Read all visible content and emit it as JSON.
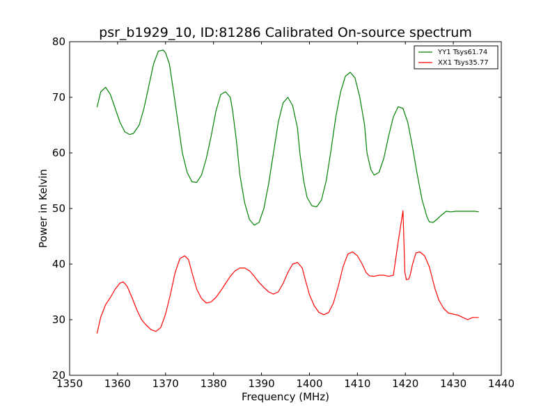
{
  "chart_data": {
    "type": "line",
    "title": "psr_b1929_10, ID:81286 Calibrated On-source spectrum",
    "xlabel": "Frequency (MHz)",
    "ylabel": "Power in Kelvin",
    "xlim": [
      1350,
      1440
    ],
    "ylim": [
      20,
      80
    ],
    "xticks": [
      "1350",
      "1360",
      "1370",
      "1380",
      "1390",
      "1400",
      "1410",
      "1420",
      "1430",
      "1440"
    ],
    "yticks": [
      "20",
      "30",
      "40",
      "50",
      "60",
      "70",
      "80"
    ],
    "grid": false,
    "legend_position": "top-right",
    "series": [
      {
        "name": "YY1 Tsys61.74",
        "color": "#008000",
        "x": [
          1355.7,
          1356.5,
          1357.5,
          1358.5,
          1359.5,
          1360.5,
          1361.5,
          1362.5,
          1363.3,
          1364.5,
          1365.5,
          1366.5,
          1367.5,
          1368.5,
          1369.5,
          1370.0,
          1370.8,
          1371.5,
          1372.5,
          1373.5,
          1374.5,
          1375.5,
          1376.5,
          1377.5,
          1378.5,
          1379.5,
          1380.5,
          1381.5,
          1382.5,
          1383.5,
          1384.0,
          1384.8,
          1385.5,
          1386.5,
          1387.5,
          1388.5,
          1389.5,
          1390.5,
          1391.5,
          1392.5,
          1393.5,
          1394.5,
          1395.5,
          1396.5,
          1397.5,
          1398.0,
          1398.8,
          1399.5,
          1400.5,
          1401.5,
          1402.5,
          1403.5,
          1404.5,
          1405.5,
          1406.5,
          1407.5,
          1408.5,
          1409.5,
          1410.5,
          1411.5,
          1412.0,
          1412.8,
          1413.5,
          1414.5,
          1415.5,
          1416.5,
          1417.5,
          1418.5,
          1419.5,
          1420.5,
          1421.5,
          1422.5,
          1423.5,
          1424.5,
          1425.0,
          1425.8,
          1426.5,
          1427.5,
          1428.5,
          1429.5,
          1430.5,
          1431.5,
          1432.5,
          1433.5,
          1434.5,
          1435.3
        ],
        "y": [
          68.2,
          71.0,
          71.8,
          70.5,
          68.0,
          65.5,
          63.8,
          63.3,
          63.5,
          65.0,
          68.0,
          72.0,
          76.0,
          78.3,
          78.5,
          78.0,
          76.0,
          72.0,
          66.0,
          60.0,
          56.5,
          54.8,
          54.7,
          56.0,
          59.0,
          63.0,
          67.5,
          70.5,
          71.0,
          70.0,
          67.5,
          62.0,
          56.0,
          51.0,
          48.0,
          47.0,
          47.5,
          50.0,
          54.5,
          60.0,
          65.5,
          69.0,
          70.0,
          68.5,
          64.5,
          60.0,
          55.0,
          52.0,
          50.5,
          50.3,
          51.5,
          55.0,
          60.5,
          66.5,
          71.0,
          73.8,
          74.5,
          73.5,
          70.0,
          65.0,
          60.0,
          57.0,
          56.0,
          56.5,
          59.0,
          63.0,
          66.5,
          68.3,
          68.0,
          65.5,
          61.0,
          56.0,
          51.5,
          48.5,
          47.6,
          47.5,
          48.0,
          48.8,
          49.5,
          49.4,
          49.5,
          49.5,
          49.5,
          49.5,
          49.5,
          49.4
        ],
        "_comment": ""
      },
      {
        "name": "XX1 Tsys35.77",
        "color": "#ff0000",
        "x": [
          1355.7,
          1356.5,
          1357.5,
          1358.5,
          1359.5,
          1360.5,
          1361.2,
          1362.0,
          1363.0,
          1364.0,
          1365.0,
          1366.0,
          1367.0,
          1368.0,
          1369.0,
          1370.0,
          1371.0,
          1372.0,
          1373.0,
          1374.0,
          1374.8,
          1375.5,
          1376.5,
          1377.5,
          1378.5,
          1379.5,
          1380.5,
          1381.5,
          1382.5,
          1383.5,
          1384.5,
          1385.5,
          1386.5,
          1387.5,
          1388.5,
          1389.5,
          1390.5,
          1391.5,
          1392.5,
          1393.5,
          1394.5,
          1395.5,
          1396.5,
          1397.5,
          1398.5,
          1399.2,
          1400.0,
          1401.0,
          1402.0,
          1403.0,
          1404.0,
          1405.0,
          1406.0,
          1407.0,
          1408.0,
          1409.0,
          1410.0,
          1411.0,
          1411.8,
          1412.5,
          1413.5,
          1414.5,
          1415.5,
          1416.5,
          1417.5,
          1418.5,
          1419.5,
          1419.9,
          1420.2,
          1420.7,
          1421.0,
          1421.5,
          1422.2,
          1423.0,
          1424.0,
          1425.0,
          1425.6,
          1426.2,
          1427.0,
          1428.0,
          1429.0,
          1430.0,
          1431.0,
          1432.0,
          1433.0,
          1434.0,
          1435.3
        ],
        "y": [
          27.5,
          30.5,
          32.7,
          34.0,
          35.5,
          36.6,
          36.8,
          36.0,
          34.0,
          31.8,
          30.0,
          29.0,
          28.2,
          27.9,
          28.6,
          31.0,
          34.5,
          38.5,
          41.0,
          41.5,
          40.8,
          38.5,
          35.5,
          33.8,
          33.0,
          33.2,
          34.0,
          35.2,
          36.5,
          37.8,
          38.8,
          39.3,
          39.3,
          38.8,
          37.8,
          36.7,
          35.8,
          35.0,
          34.6,
          35.0,
          36.5,
          38.5,
          40.0,
          40.3,
          39.3,
          37.0,
          34.5,
          32.5,
          31.3,
          30.9,
          31.3,
          33.0,
          36.0,
          39.5,
          41.8,
          42.2,
          41.5,
          40.0,
          38.5,
          37.9,
          37.8,
          38.0,
          38.0,
          37.8,
          38.0,
          44.0,
          49.6,
          38.5,
          37.2,
          37.3,
          38.0,
          40.0,
          42.0,
          42.2,
          41.5,
          39.5,
          37.5,
          35.5,
          33.5,
          32.0,
          31.2,
          31.0,
          30.8,
          30.4,
          30.0,
          30.4,
          30.4
        ],
        "_comment": ""
      }
    ]
  }
}
